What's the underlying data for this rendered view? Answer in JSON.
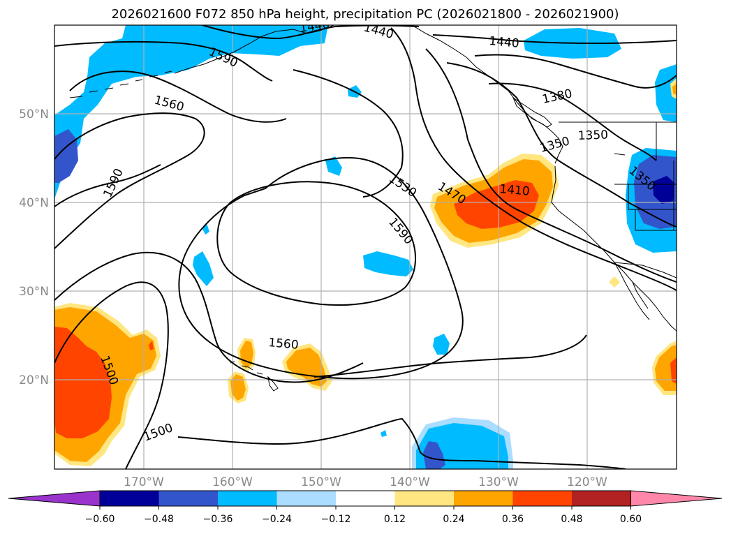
{
  "title": "2026021600 F072 850 hPa height, precipitation PC (2026021800 - 2026021900)",
  "lat_labels": [
    "50°N",
    "40°N",
    "30°N",
    "20°N"
  ],
  "lon_labels": [
    "170°W",
    "160°W",
    "150°W",
    "140°W",
    "130°W",
    "120°W"
  ],
  "contour_labels": [
    "1440",
    "1440",
    "1440",
    "1590",
    "1560",
    "1590",
    "1380",
    "1350",
    "1350",
    "1350",
    "1530",
    "1470",
    "1410",
    "1590",
    "1560",
    "1500",
    "1500"
  ],
  "colorbar": {
    "tick_labels": [
      "−0.60",
      "−0.48",
      "−0.36",
      "−0.24",
      "−0.12",
      "0.12",
      "0.24",
      "0.36",
      "0.48",
      "0.60"
    ],
    "colors": [
      "#9933cc",
      "#000099",
      "#3355cc",
      "#00bbff",
      "#aaddff",
      "#ffffff",
      "#ffe680",
      "#ffa500",
      "#ff4400",
      "#b22222",
      "#ff88aa"
    ]
  },
  "palette": {
    "dark_blue": "#000099",
    "blue": "#3355cc",
    "cyan": "#00bbff",
    "light_blue": "#aaddff",
    "yellow": "#ffe680",
    "orange": "#ffa500",
    "red_orange": "#ff4400",
    "grid": "#b0b0b0",
    "contour": "#000000"
  }
}
